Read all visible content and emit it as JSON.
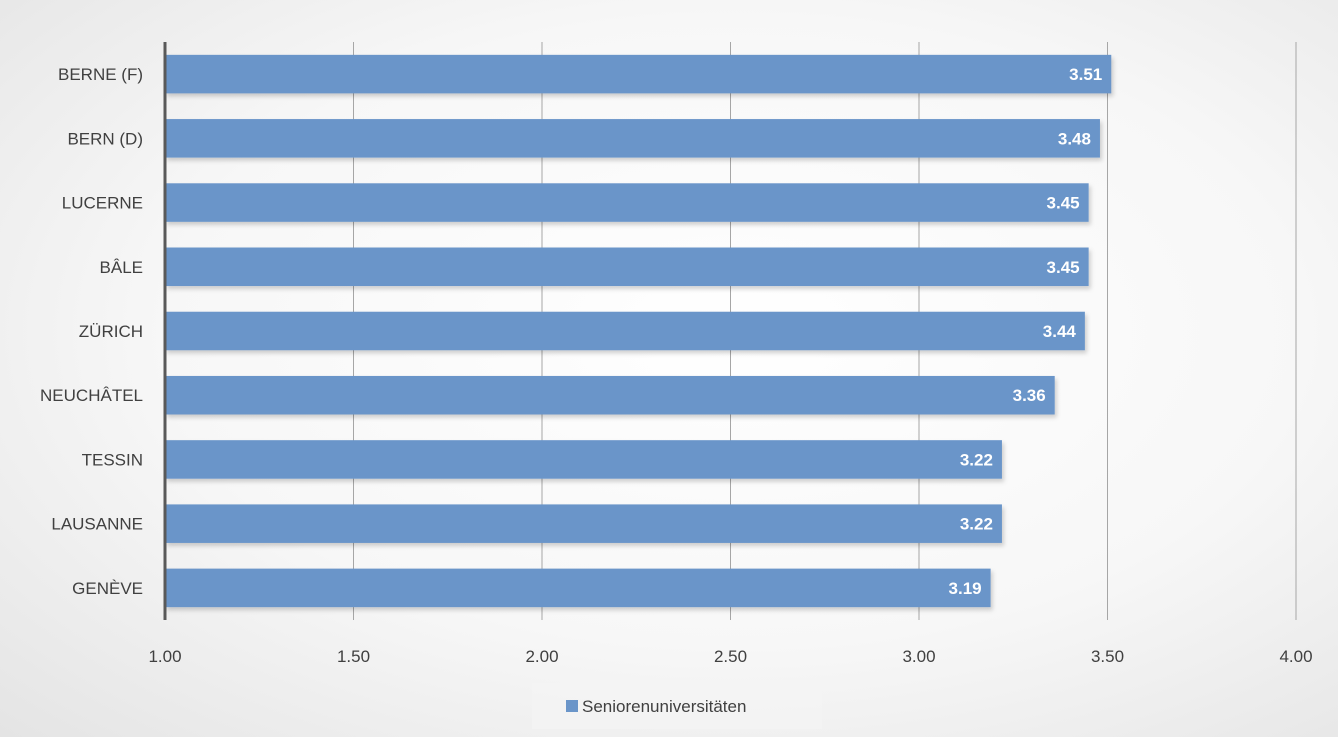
{
  "chart_data": {
    "type": "bar",
    "orientation": "horizontal",
    "categories": [
      "BERNE (F)",
      "BERN (D)",
      "LUCERNE",
      "BÂLE",
      "ZÜRICH",
      "NEUCHÂTEL",
      "TESSIN",
      "LAUSANNE",
      "GENÈVE"
    ],
    "series": [
      {
        "name": "Seniorenuniversitäten",
        "values": [
          3.51,
          3.48,
          3.45,
          3.45,
          3.44,
          3.36,
          3.22,
          3.22,
          3.19
        ],
        "color": "#6a95c9"
      }
    ],
    "data_labels": [
      "3.51",
      "3.48",
      "3.45",
      "3.45",
      "3.44",
      "3.36",
      "3.22",
      "3.22",
      "3.19"
    ],
    "xlim": [
      1.0,
      4.0
    ],
    "x_ticks": [
      1.0,
      1.5,
      2.0,
      2.5,
      3.0,
      3.5,
      4.0
    ],
    "x_tick_labels": [
      "1.00",
      "1.50",
      "2.00",
      "2.50",
      "3.00",
      "3.50",
      "4.00"
    ],
    "title": "",
    "xlabel": "",
    "ylabel": "",
    "grid": "vertical",
    "legend_position": "bottom",
    "gridline_color": "#a6a6a6"
  }
}
